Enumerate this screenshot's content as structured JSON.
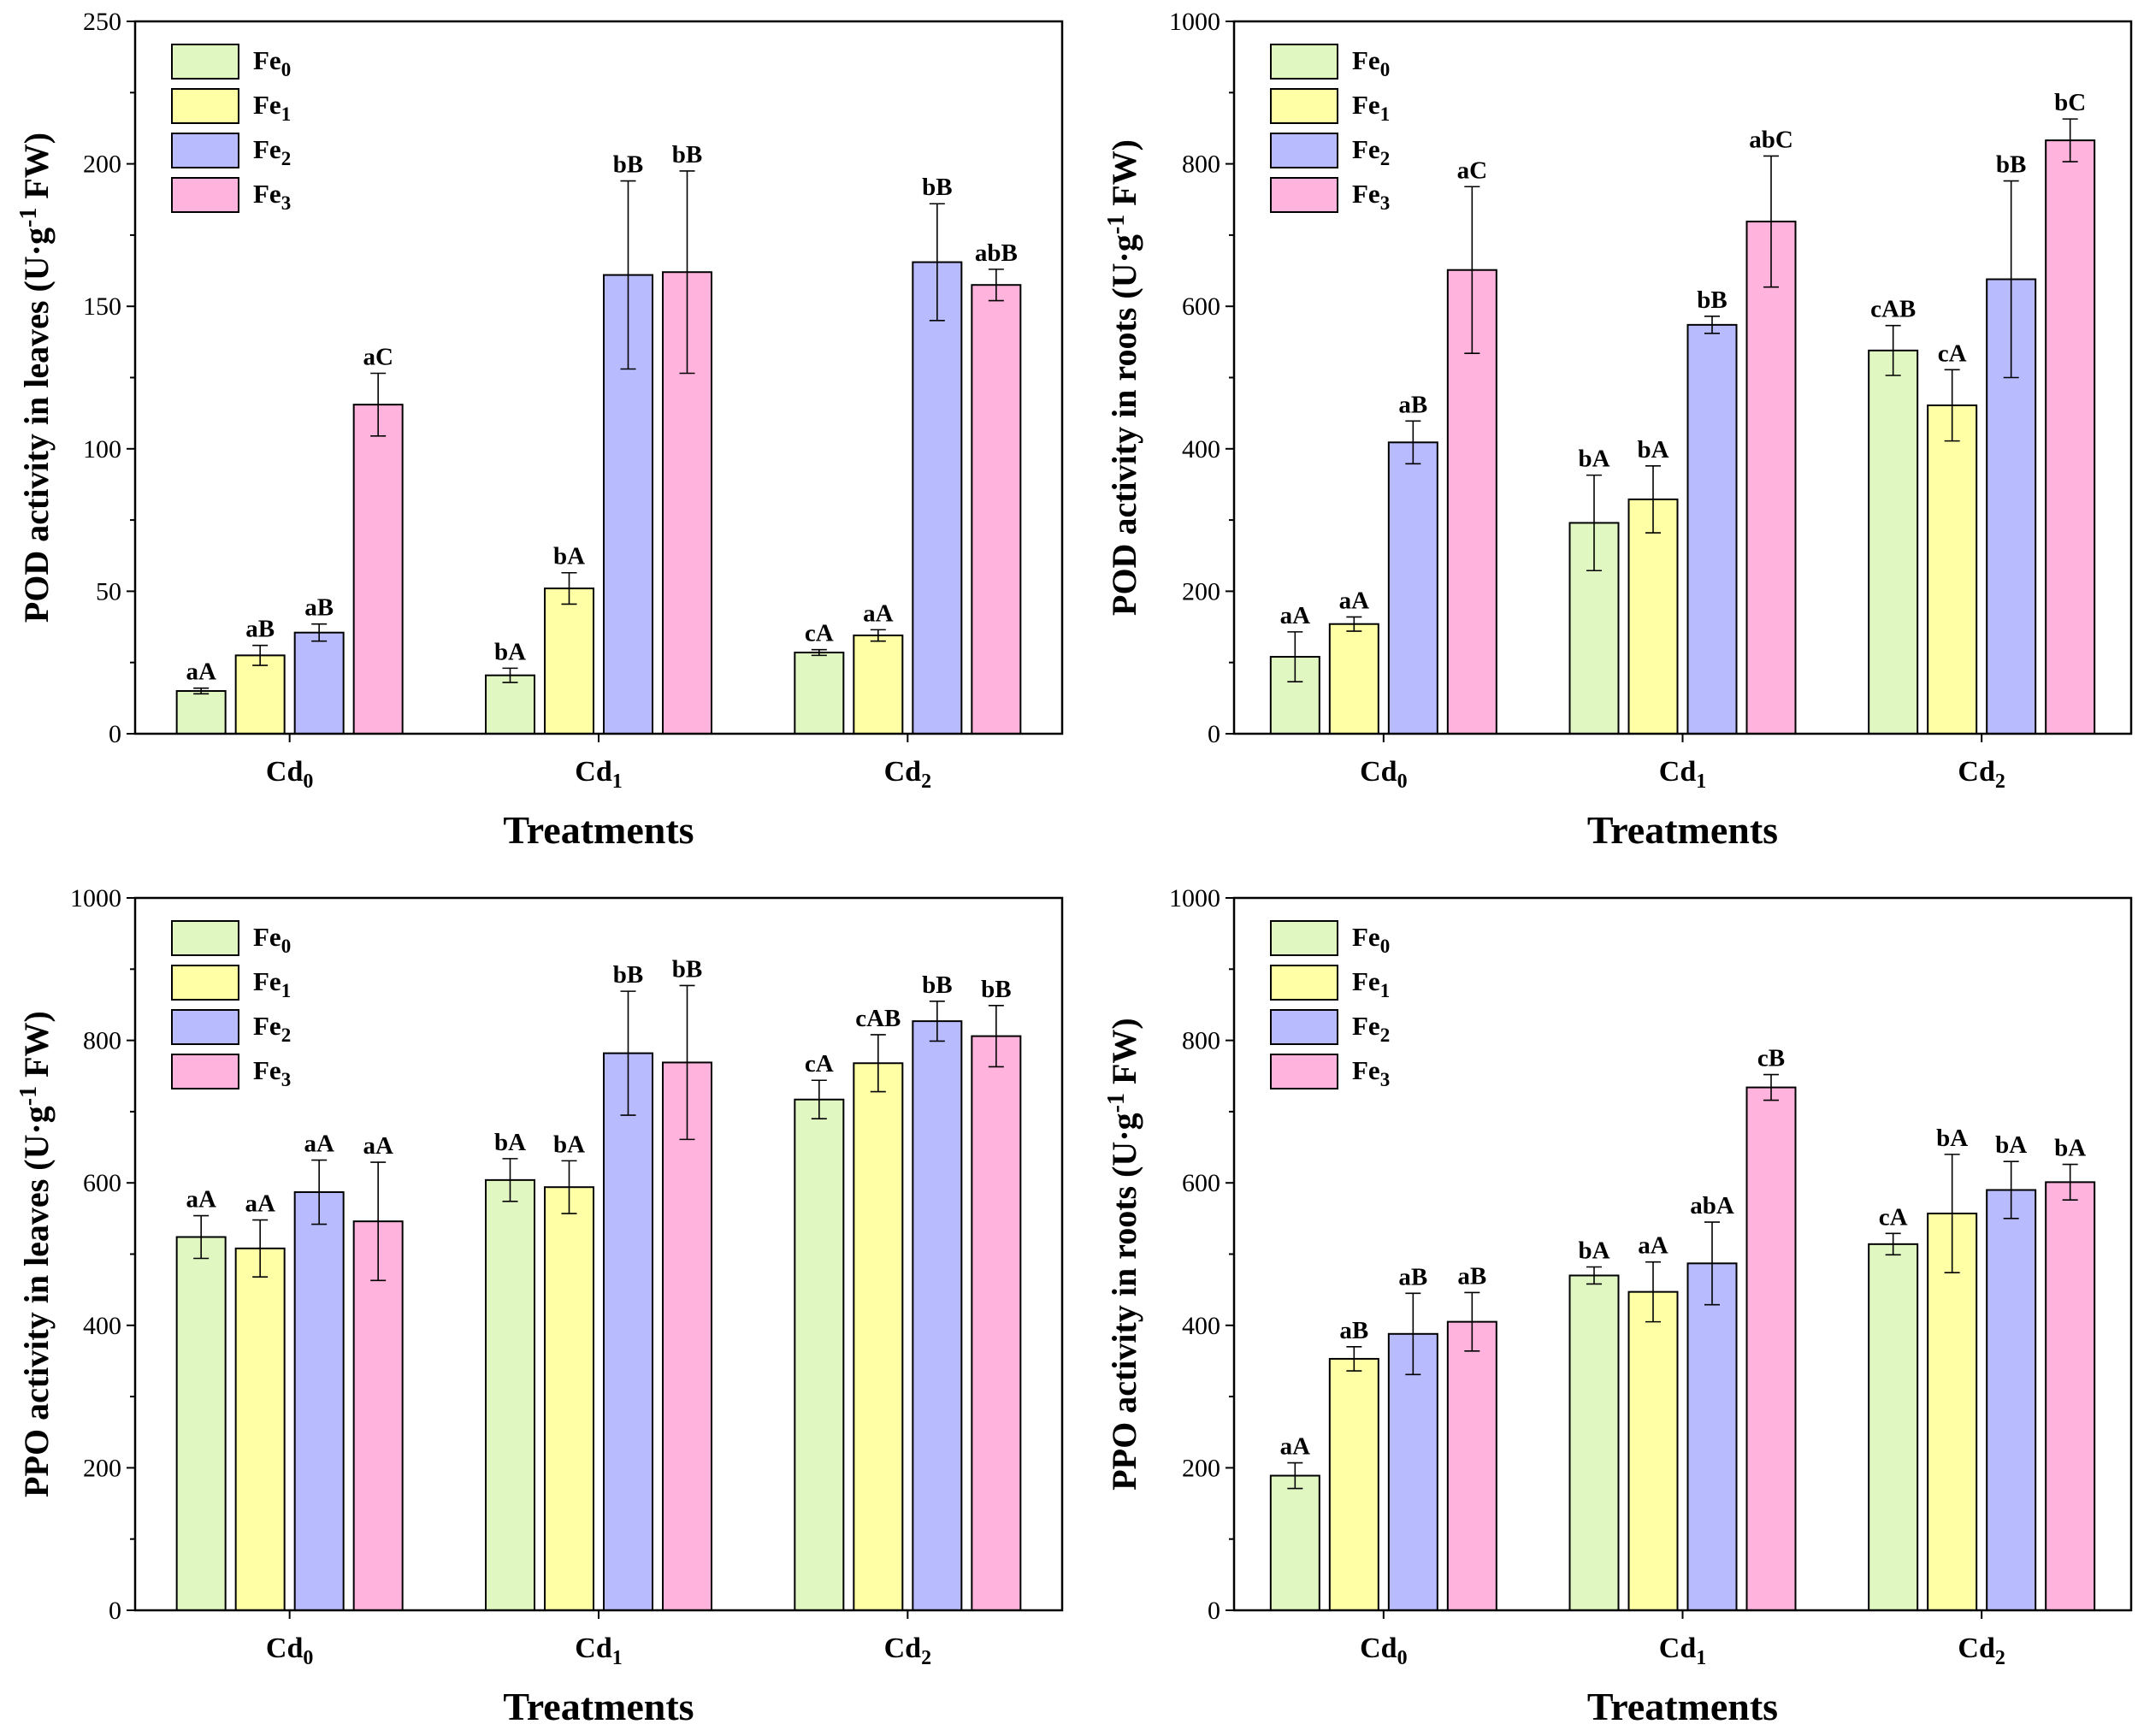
{
  "figure": {
    "charts": [
      {
        "type": "bar",
        "ylabel_main": "POD activity in leaves (U·g",
        "ylabel_sup": "-1",
        "ylabel_tail": " FW)",
        "xlabel": "Treatments",
        "ylim": [
          0,
          250
        ],
        "yticks": [
          "0",
          "50",
          "100",
          "150",
          "200",
          "250"
        ],
        "categories": [
          {
            "base": "Cd",
            "sub": "0"
          },
          {
            "base": "Cd",
            "sub": "1"
          },
          {
            "base": "Cd",
            "sub": "2"
          }
        ],
        "series": [
          {
            "base": "Fe",
            "sub": "0",
            "color": "#E0F7C2",
            "values": [
              15,
              20.5,
              28.5
            ],
            "errors": [
              1,
              2.5,
              1
            ],
            "labels": [
              "aA",
              "bA",
              "cA"
            ]
          },
          {
            "base": "Fe",
            "sub": "1",
            "color": "#FFFFA5",
            "values": [
              27.5,
              51,
              34.5
            ],
            "errors": [
              3.5,
              5.5,
              2
            ],
            "labels": [
              "aB",
              "bA",
              "aA"
            ]
          },
          {
            "base": "Fe",
            "sub": "2",
            "color": "#B8BCFF",
            "values": [
              35.5,
              161,
              165.5
            ],
            "errors": [
              3,
              33,
              20.5
            ],
            "labels": [
              "aB",
              "bB",
              "bB"
            ]
          },
          {
            "base": "Fe",
            "sub": "3",
            "color": "#FFB3DD",
            "values": [
              115.5,
              162,
              157.5
            ],
            "errors": [
              11,
              35.5,
              5.5
            ],
            "labels": [
              "aC",
              "bB",
              "abB"
            ]
          }
        ]
      },
      {
        "type": "bar",
        "ylabel_main": "POD activity in roots (U·g",
        "ylabel_sup": "-1",
        "ylabel_tail": " FW)",
        "xlabel": "Treatments",
        "ylim": [
          0,
          1000
        ],
        "yticks": [
          "0",
          "200",
          "400",
          "600",
          "800",
          "1000"
        ],
        "categories": [
          {
            "base": "Cd",
            "sub": "0"
          },
          {
            "base": "Cd",
            "sub": "1"
          },
          {
            "base": "Cd",
            "sub": "2"
          }
        ],
        "series": [
          {
            "base": "Fe",
            "sub": "0",
            "color": "#E0F7C2",
            "values": [
              108,
              296,
              538
            ],
            "errors": [
              35,
              67,
              35
            ],
            "labels": [
              "aA",
              "bA",
              "cAB"
            ]
          },
          {
            "base": "Fe",
            "sub": "1",
            "color": "#FFFFA5",
            "values": [
              154,
              329,
              461
            ],
            "errors": [
              10,
              47,
              50
            ],
            "labels": [
              "aA",
              "bA",
              "cA"
            ]
          },
          {
            "base": "Fe",
            "sub": "2",
            "color": "#B8BCFF",
            "values": [
              409,
              574,
              638
            ],
            "errors": [
              30,
              12,
              138
            ],
            "labels": [
              "aB",
              "bB",
              "bB"
            ]
          },
          {
            "base": "Fe",
            "sub": "3",
            "color": "#FFB3DD",
            "values": [
              651,
              719,
              833
            ],
            "errors": [
              117,
              92,
              30
            ],
            "labels": [
              "aC",
              "abC",
              "bC"
            ]
          }
        ]
      },
      {
        "type": "bar",
        "ylabel_main": "PPO activity in leaves (U·g",
        "ylabel_sup": "-1",
        "ylabel_tail": " FW)",
        "xlabel": "Treatments",
        "ylim": [
          0,
          1000
        ],
        "yticks": [
          "0",
          "200",
          "400",
          "600",
          "800",
          "1000"
        ],
        "categories": [
          {
            "base": "Cd",
            "sub": "0"
          },
          {
            "base": "Cd",
            "sub": "1"
          },
          {
            "base": "Cd",
            "sub": "2"
          }
        ],
        "series": [
          {
            "base": "Fe",
            "sub": "0",
            "color": "#E0F7C2",
            "values": [
              524,
              604,
              717
            ],
            "errors": [
              30,
              30,
              27
            ],
            "labels": [
              "aA",
              "bA",
              "cA"
            ]
          },
          {
            "base": "Fe",
            "sub": "1",
            "color": "#FFFFA5",
            "values": [
              508,
              594,
              768
            ],
            "errors": [
              40,
              37,
              40
            ],
            "labels": [
              "aA",
              "bA",
              "cAB"
            ]
          },
          {
            "base": "Fe",
            "sub": "2",
            "color": "#B8BCFF",
            "values": [
              587,
              782,
              827
            ],
            "errors": [
              45,
              87,
              28
            ],
            "labels": [
              "aA",
              "bB",
              "bB"
            ]
          },
          {
            "base": "Fe",
            "sub": "3",
            "color": "#FFB3DD",
            "values": [
              546,
              769,
              806
            ],
            "errors": [
              83,
              108,
              43
            ],
            "labels": [
              "aA",
              "bB",
              "bB"
            ]
          }
        ]
      },
      {
        "type": "bar",
        "ylabel_main": "PPO activity in roots (U·g",
        "ylabel_sup": "-1",
        "ylabel_tail": " FW)",
        "xlabel": "Treatments",
        "ylim": [
          0,
          1000
        ],
        "yticks": [
          "0",
          "200",
          "400",
          "600",
          "800",
          "1000"
        ],
        "categories": [
          {
            "base": "Cd",
            "sub": "0"
          },
          {
            "base": "Cd",
            "sub": "1"
          },
          {
            "base": "Cd",
            "sub": "2"
          }
        ],
        "series": [
          {
            "base": "Fe",
            "sub": "0",
            "color": "#E0F7C2",
            "values": [
              189,
              470,
              514
            ],
            "errors": [
              18,
              12,
              15
            ],
            "labels": [
              "aA",
              "bA",
              "cA"
            ]
          },
          {
            "base": "Fe",
            "sub": "1",
            "color": "#FFFFA5",
            "values": [
              353,
              447,
              557
            ],
            "errors": [
              17,
              42,
              83
            ],
            "labels": [
              "aB",
              "aA",
              "bA"
            ]
          },
          {
            "base": "Fe",
            "sub": "2",
            "color": "#B8BCFF",
            "values": [
              388,
              487,
              590
            ],
            "errors": [
              57,
              58,
              40
            ],
            "labels": [
              "aB",
              "abA",
              "bA"
            ]
          },
          {
            "base": "Fe",
            "sub": "3",
            "color": "#FFB3DD",
            "values": [
              405,
              734,
              601
            ],
            "errors": [
              41,
              18,
              25
            ],
            "labels": [
              "aB",
              "cB",
              "bA"
            ]
          }
        ]
      }
    ]
  }
}
